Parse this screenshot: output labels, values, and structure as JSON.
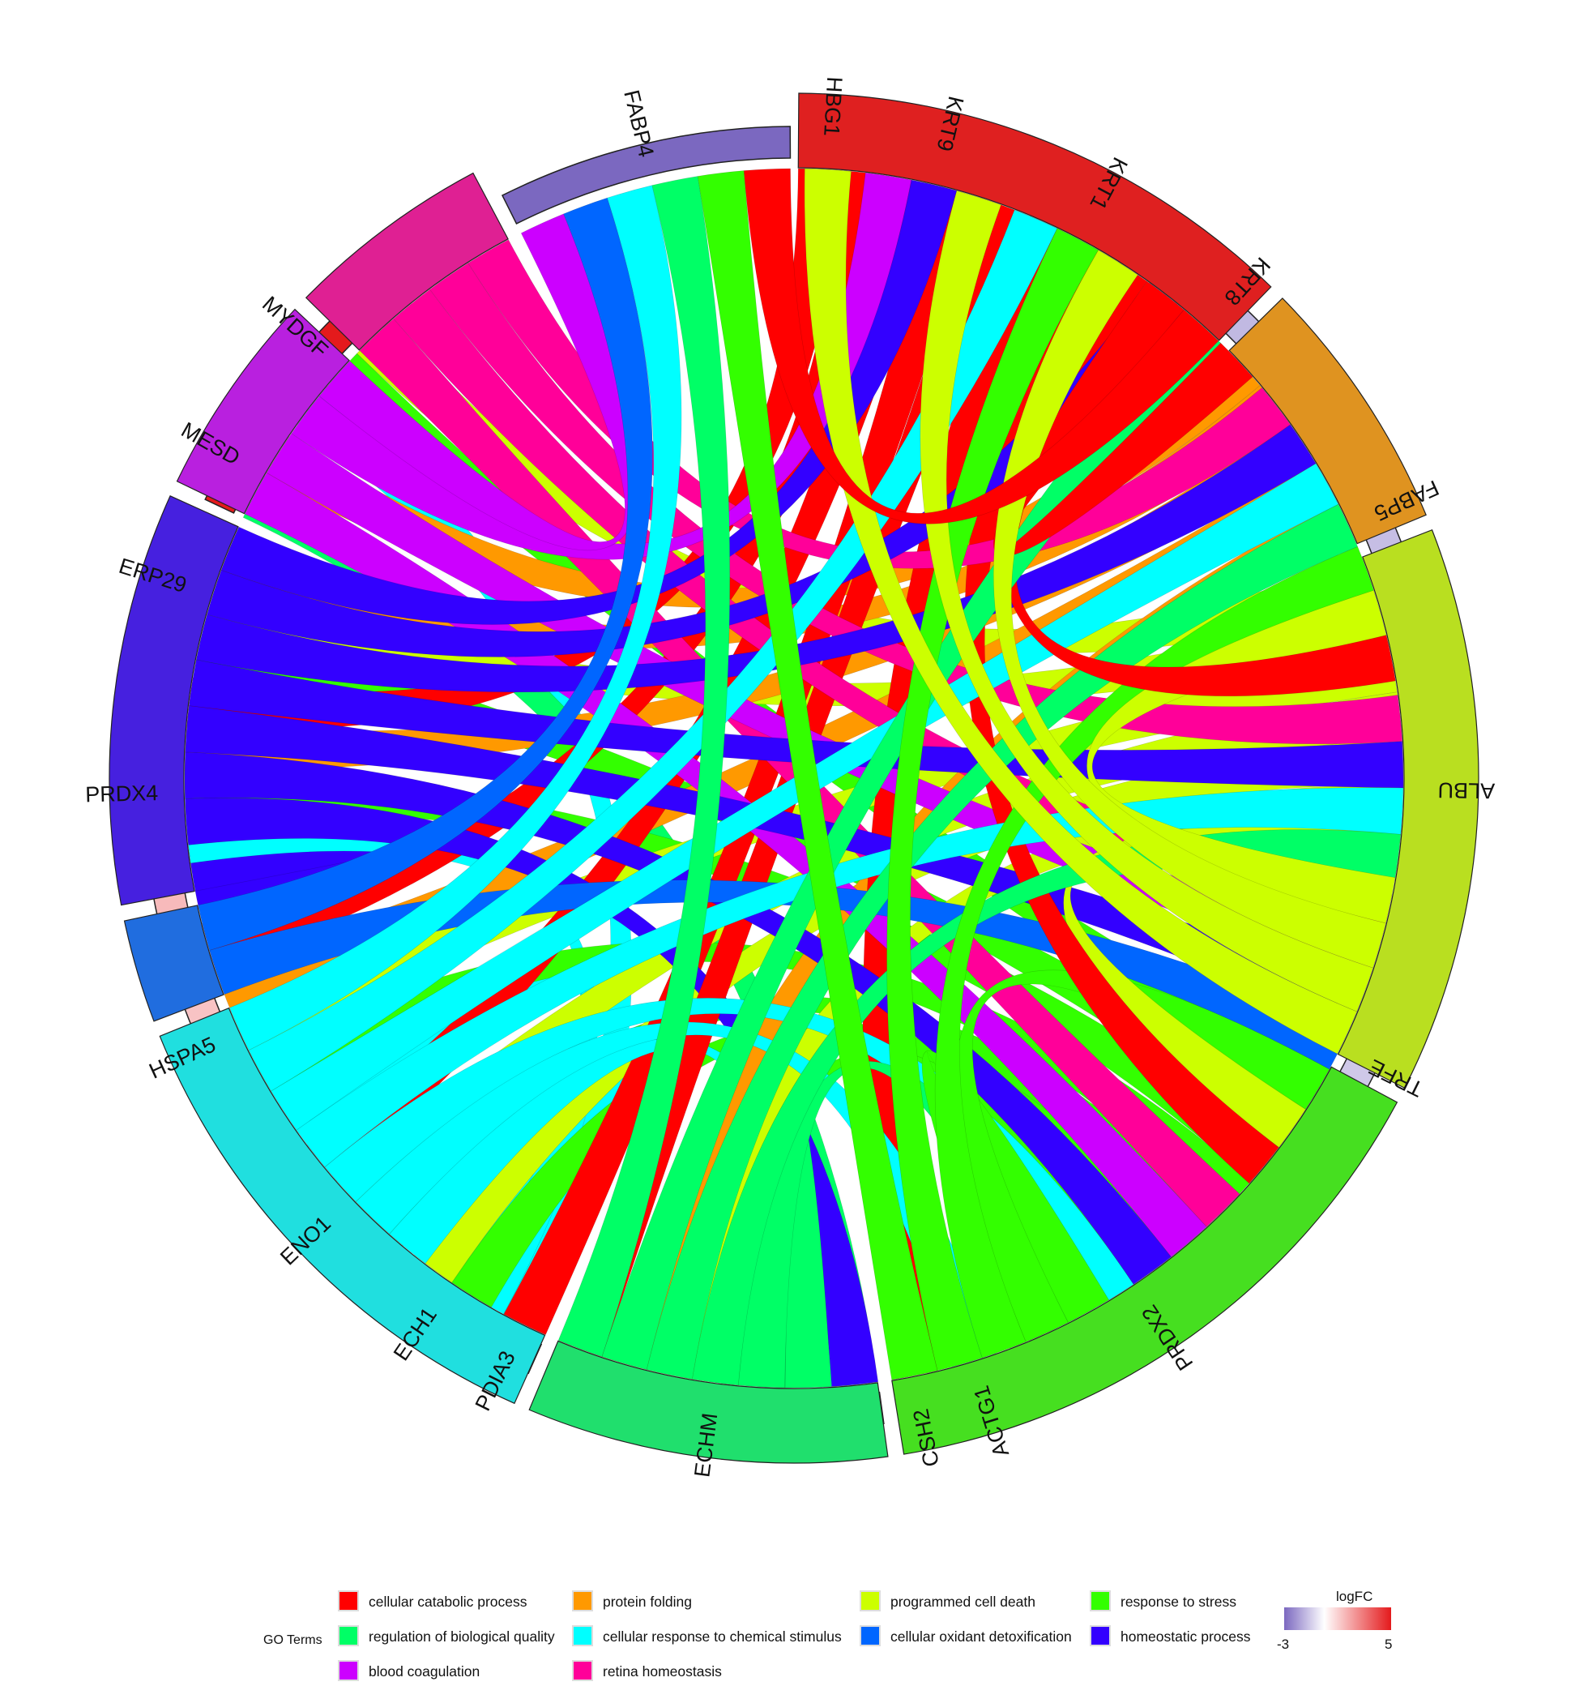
{
  "chart_data": {
    "type": "chord",
    "genes": [
      {
        "name": "MYDGF",
        "logFC": 5.0
      },
      {
        "name": "MESD",
        "logFC": 5.0
      },
      {
        "name": "ERP29",
        "logFC": 2.6
      },
      {
        "name": "PRDX4",
        "logFC": 1.5
      },
      {
        "name": "HSPA5",
        "logFC": 1.3
      },
      {
        "name": "ENO1",
        "logFC": 1.0
      },
      {
        "name": "ECH1",
        "logFC": 0.8
      },
      {
        "name": "PDIA3",
        "logFC": 0.5
      },
      {
        "name": "ECHM",
        "logFC": 0.2
      },
      {
        "name": "CSH2",
        "logFC": -1.0
      },
      {
        "name": "ACTG1",
        "logFC": -0.8
      },
      {
        "name": "PRDX2",
        "logFC": -1.0
      },
      {
        "name": "TRFE",
        "logFC": -1.1
      },
      {
        "name": "ALBU",
        "logFC": -1.2
      },
      {
        "name": "FABP5",
        "logFC": -1.3
      },
      {
        "name": "KRT8",
        "logFC": -1.4
      },
      {
        "name": "KRT1",
        "logFC": -1.5
      },
      {
        "name": "KRT9",
        "logFC": -1.8
      },
      {
        "name": "HBG1",
        "logFC": -2.2
      },
      {
        "name": "FABP4",
        "logFC": -3.0
      }
    ],
    "terms": [
      {
        "name": "cellular catabolic process",
        "color": "#FF0000"
      },
      {
        "name": "protein folding",
        "color": "#FF9900"
      },
      {
        "name": "programmed cell death",
        "color": "#CCFF00"
      },
      {
        "name": "response to stress",
        "color": "#33FF00"
      },
      {
        "name": "regulation of biological quality",
        "color": "#00FF66"
      },
      {
        "name": "cellular response to chemical stimulus",
        "color": "#00FFFF"
      },
      {
        "name": "cellular oxidant detoxification",
        "color": "#0066FF"
      },
      {
        "name": "homeostatic process",
        "color": "#3300FF"
      },
      {
        "name": "blood coagulation",
        "color": "#CC00FF"
      },
      {
        "name": "retina homeostasis",
        "color": "#FF0099"
      }
    ],
    "links": [
      {
        "gene": "MYDGF",
        "terms": [
          "programmed cell death",
          "response to stress",
          "cellular response to chemical stimulus"
        ]
      },
      {
        "gene": "MESD",
        "terms": [
          "protein folding",
          "regulation of biological quality"
        ]
      },
      {
        "gene": "ERP29",
        "terms": [
          "protein folding",
          "programmed cell death",
          "response to stress"
        ]
      },
      {
        "gene": "PRDX4",
        "terms": [
          "cellular catabolic process",
          "protein folding",
          "response to stress",
          "cellular response to chemical stimulus",
          "homeostatic process"
        ]
      },
      {
        "gene": "HSPA5",
        "terms": [
          "cellular catabolic process",
          "protein folding",
          "programmed cell death",
          "response to stress",
          "cellular response to chemical stimulus"
        ]
      },
      {
        "gene": "ENO1",
        "terms": [
          "cellular catabolic process",
          "programmed cell death",
          "response to stress"
        ]
      },
      {
        "gene": "ECH1",
        "terms": [
          "programmed cell death",
          "response to stress"
        ]
      },
      {
        "gene": "PDIA3",
        "terms": [
          "cellular catabolic process"
        ]
      },
      {
        "gene": "ECHM",
        "terms": [
          "cellular catabolic process",
          "protein folding",
          "programmed cell death",
          "response to stress",
          "regulation of biological quality",
          "cellular response to chemical stimulus",
          "homeostatic process"
        ]
      },
      {
        "gene": "CSH2",
        "terms": [
          "cellular catabolic process"
        ]
      },
      {
        "gene": "ACTG1",
        "terms": [
          "cellular response to chemical stimulus"
        ]
      },
      {
        "gene": "PRDX2",
        "terms": [
          "response to stress",
          "regulation of biological quality",
          "cellular response to chemical stimulus",
          "homeostatic process",
          "blood coagulation",
          "retina homeostasis"
        ]
      },
      {
        "gene": "TRFE",
        "terms": [
          "cellular catabolic process",
          "programmed cell death",
          "response to stress",
          "cellular oxidant detoxification",
          "homeostatic process",
          "blood coagulation",
          "retina homeostasis"
        ]
      },
      {
        "gene": "ALBU",
        "terms": [
          "regulation of biological quality",
          "cellular response to chemical stimulus",
          "homeostatic process",
          "retina homeostasis"
        ]
      },
      {
        "gene": "FABP5",
        "terms": [
          "cellular catabolic process",
          "programmed cell death",
          "response to stress",
          "regulation of biological quality",
          "cellular response to chemical stimulus",
          "homeostatic process",
          "retina homeostasis"
        ]
      },
      {
        "gene": "KRT8",
        "terms": [
          "cellular catabolic process",
          "regulation of biological quality",
          "homeostatic process"
        ]
      },
      {
        "gene": "KRT1",
        "terms": [
          "programmed cell death",
          "response to stress",
          "cellular response to chemical stimulus"
        ]
      },
      {
        "gene": "KRT9",
        "terms": [
          "programmed cell death",
          "homeostatic process",
          "blood coagulation"
        ]
      },
      {
        "gene": "HBG1",
        "terms": [
          "programmed cell death"
        ]
      },
      {
        "gene": "FABP4",
        "terms": [
          "cellular catabolic process",
          "response to stress",
          "regulation of biological quality",
          "cellular response to chemical stimulus",
          "cellular oxidant detoxification",
          "blood coagulation"
        ]
      }
    ],
    "legend": {
      "title": "GO Terms",
      "placement": "bottom",
      "order": [
        "cellular catabolic process",
        "protein folding",
        "programmed cell death",
        "response to stress",
        "regulation of biological quality",
        "cellular response to chemical stimulus",
        "cellular oxidant detoxification",
        "homeostatic process",
        "blood coagulation",
        "retina homeostasis"
      ]
    },
    "colorbar": {
      "title": "logFC",
      "min": -3,
      "max": 5,
      "min_label": "-3",
      "max_label": "5",
      "low_color": "#7B68C0",
      "mid_color": "#FFFFFF",
      "high_color": "#E41A1C"
    }
  }
}
